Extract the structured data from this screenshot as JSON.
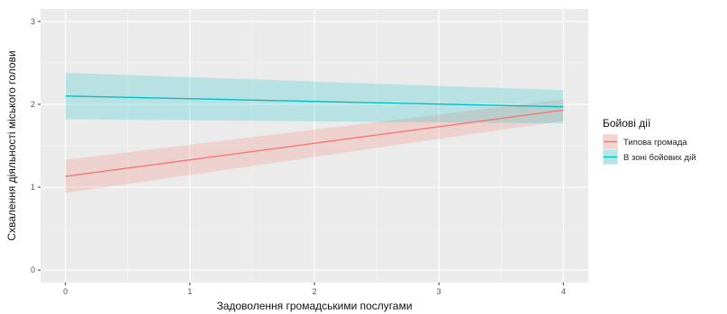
{
  "chart_data": {
    "type": "line",
    "title": "",
    "xlabel": "Задоволення громадськими послугами",
    "ylabel": "Схвалення діяльності міського голови",
    "xlim": [
      -0.2,
      4.2
    ],
    "ylim": [
      -0.15,
      3.15
    ],
    "x_ticks": [
      0,
      1,
      2,
      3,
      4
    ],
    "y_ticks": [
      0,
      1,
      2,
      3
    ],
    "x_tick_labels": [
      "0",
      "1",
      "2",
      "3",
      "4"
    ],
    "y_tick_labels": [
      "0",
      "1",
      "2",
      "3"
    ],
    "grid": true,
    "legend_position": "right",
    "legend_title": "Бойові дії",
    "series": [
      {
        "name": "Типова громада",
        "color": "#F8766D",
        "x": [
          0,
          4
        ],
        "y": [
          1.13,
          1.93
        ],
        "lower": [
          0.93,
          1.8
        ],
        "upper": [
          1.33,
          2.06
        ]
      },
      {
        "name": "В зоні бойових дій",
        "color": "#00BFC4",
        "x": [
          0,
          4
        ],
        "y": [
          2.1,
          1.97
        ],
        "lower": [
          1.82,
          1.77
        ],
        "upper": [
          2.38,
          2.17
        ]
      }
    ]
  }
}
